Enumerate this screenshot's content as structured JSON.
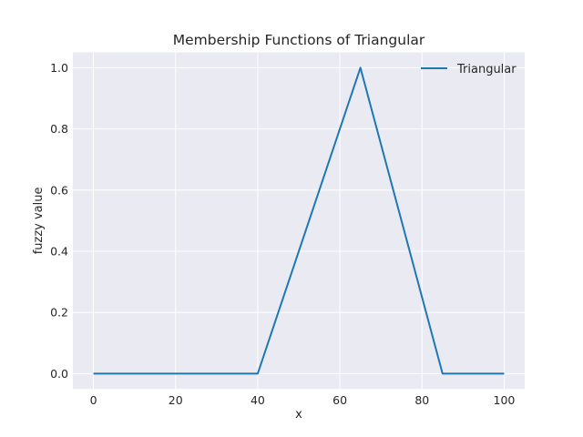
{
  "chart_data": {
    "type": "line",
    "title": "Membership Functions of Triangular",
    "xlabel": "x",
    "ylabel": "fuzzy value",
    "xlim": [
      -5,
      105
    ],
    "ylim": [
      -0.05,
      1.05
    ],
    "xticks": [
      0,
      20,
      40,
      60,
      80,
      100
    ],
    "yticks": [
      0.0,
      0.2,
      0.4,
      0.6,
      0.8,
      1.0
    ],
    "xtick_labels": [
      "0",
      "20",
      "40",
      "60",
      "80",
      "100"
    ],
    "ytick_labels": [
      "0.0",
      "0.2",
      "0.4",
      "0.6",
      "0.8",
      "1.0"
    ],
    "grid": true,
    "legend_position": "top-right",
    "background_color": "#eaeaf2",
    "grid_color": "#ffffff",
    "series": [
      {
        "name": "Triangular",
        "color": "#1f77b4",
        "x": [
          0,
          40,
          65,
          85,
          100
        ],
        "y": [
          0,
          0,
          1,
          0,
          0
        ]
      }
    ]
  }
}
